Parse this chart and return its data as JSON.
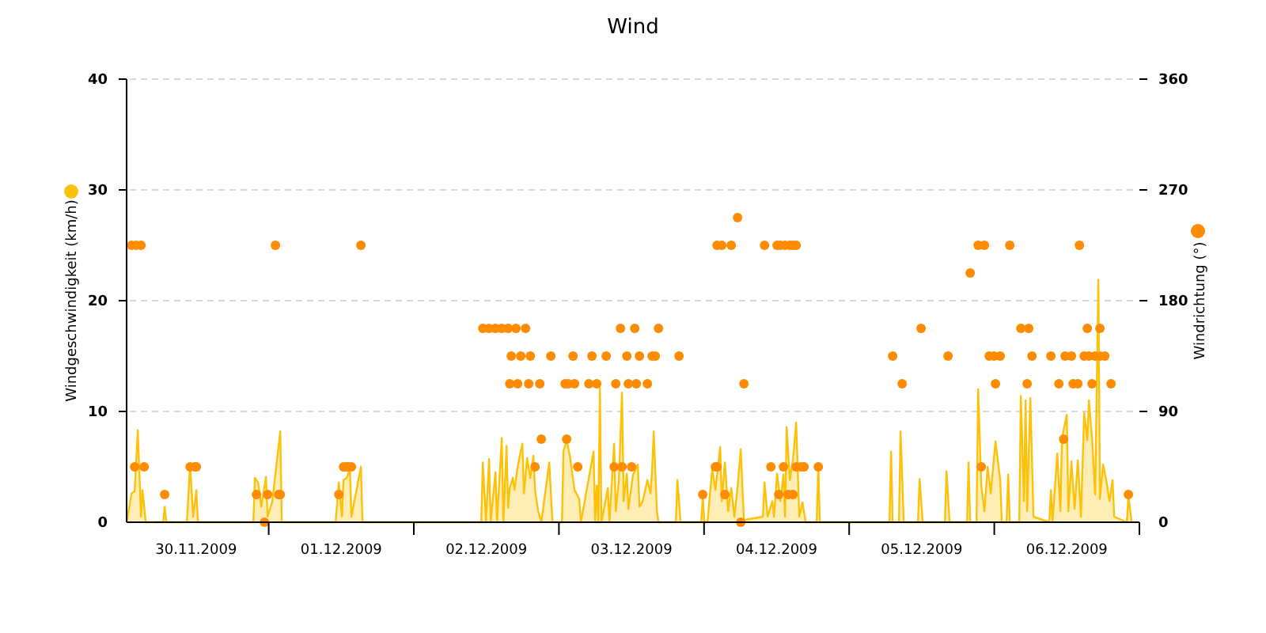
{
  "chart_data": {
    "type": "area",
    "title": "Wind",
    "ylabel": "Windgeschwindigkeit (km/h)",
    "y2label": "Windrichtung (°)",
    "xlim": [
      "2009-11-30T00:30",
      "2009-12-07T00:00"
    ],
    "xticks": [
      {
        "value": "2009-11-30T12:00",
        "label": "30.11.2009"
      },
      {
        "value": "2009-12-01T00:00",
        "label": null
      },
      {
        "value": "2009-12-01T12:00",
        "label": "01.12.2009"
      },
      {
        "value": "2009-12-02T00:00",
        "label": null
      },
      {
        "value": "2009-12-02T12:00",
        "label": "02.12.2009"
      },
      {
        "value": "2009-12-03T00:00",
        "label": null
      },
      {
        "value": "2009-12-03T12:00",
        "label": "03.12.2009"
      },
      {
        "value": "2009-12-04T00:00",
        "label": null
      },
      {
        "value": "2009-12-04T12:00",
        "label": "04.12.2009"
      },
      {
        "value": "2009-12-05T00:00",
        "label": null
      },
      {
        "value": "2009-12-05T12:00",
        "label": "05.12.2009"
      },
      {
        "value": "2009-12-06T00:00",
        "label": null
      },
      {
        "value": "2009-12-06T12:00",
        "label": "06.12.2009"
      },
      {
        "value": "2009-12-07T00:00",
        "label": null
      }
    ],
    "ylim": [
      0,
      40
    ],
    "yticks": [
      0,
      10,
      20,
      30,
      40
    ],
    "y2lim": [
      0,
      360
    ],
    "y2ticks": [
      0,
      90,
      180,
      270,
      360
    ],
    "grid": "y",
    "series": [
      {
        "color": "#fcc20a",
        "x": [
          "2009-11-30T00:31",
          "2009-11-30T01:19",
          "2009-11-30T01:50",
          "2009-11-30T02:21",
          "2009-11-30T02:53",
          "2009-11-30T03:08",
          "2009-11-30T03:40",
          "2009-11-30T06:33",
          "2009-11-30T06:48",
          "2009-11-30T07:04",
          "2009-11-30T10:28",
          "2009-11-30T11:00",
          "2009-11-30T11:31",
          "2009-11-30T12:02",
          "2009-11-30T12:18",
          "2009-11-30T21:28",
          "2009-11-30T21:43",
          "2009-11-30T22:15",
          "2009-11-30T22:46",
          "2009-11-30T23:33",
          "2009-11-30T23:49",
          "2009-12-01T00:36",
          "2009-12-01T01:55",
          "2009-12-01T02:10",
          "2009-12-01T11:04",
          "2009-12-01T11:36",
          "2009-12-01T12:07",
          "2009-12-01T12:23",
          "2009-12-01T12:54",
          "2009-12-01T13:26",
          "2009-12-01T13:41",
          "2009-12-01T15:15",
          "2009-12-01T15:31",
          "2009-12-02T11:09",
          "2009-12-02T11:25",
          "2009-12-02T11:56",
          "2009-12-02T12:27",
          "2009-12-02T12:43",
          "2009-12-02T13:30",
          "2009-12-02T13:46",
          "2009-12-02T14:33",
          "2009-12-02T14:49",
          "2009-12-02T15:20",
          "2009-12-02T15:36",
          "2009-12-02T15:52",
          "2009-12-02T16:23",
          "2009-12-02T16:39",
          "2009-12-02T17:10",
          "2009-12-02T17:57",
          "2009-12-02T18:13",
          "2009-12-02T18:44",
          "2009-12-02T19:16",
          "2009-12-02T19:47",
          "2009-12-02T20:03",
          "2009-12-02T20:34",
          "2009-12-02T21:05",
          "2009-12-02T22:24",
          "2009-12-02T22:56",
          "2009-12-03T00:30",
          "2009-12-03T00:45",
          "2009-12-03T01:17",
          "2009-12-03T01:48",
          "2009-12-03T02:35",
          "2009-12-03T03:22",
          "2009-12-03T03:38",
          "2009-12-03T05:44",
          "2009-12-03T05:59",
          "2009-12-03T06:15",
          "2009-12-03T06:31",
          "2009-12-03T06:47",
          "2009-12-03T07:02",
          "2009-12-03T08:05",
          "2009-12-03T08:21",
          "2009-12-03T09:08",
          "2009-12-03T09:24",
          "2009-12-03T09:55",
          "2009-12-03T10:26",
          "2009-12-03T10:42",
          "2009-12-03T11:14",
          "2009-12-03T11:29",
          "2009-12-03T12:16",
          "2009-12-03T13:03",
          "2009-12-03T13:19",
          "2009-12-03T13:51",
          "2009-12-03T14:38",
          "2009-12-03T15:09",
          "2009-12-03T15:25",
          "2009-12-03T15:41",
          "2009-12-03T16:12",
          "2009-12-03T16:28",
          "2009-12-03T19:20",
          "2009-12-03T19:36",
          "2009-12-03T20:07",
          "2009-12-03T23:32",
          "2009-12-03T23:47",
          "2009-12-04T00:03",
          "2009-12-04T00:34",
          "2009-12-04T01:21",
          "2009-12-04T01:53",
          "2009-12-04T02:40",
          "2009-12-04T02:56",
          "2009-12-04T03:27",
          "2009-12-04T03:59",
          "2009-12-04T04:30",
          "2009-12-04T05:01",
          "2009-12-04T05:33",
          "2009-12-04T06:04",
          "2009-12-04T06:36",
          "2009-12-04T09:44",
          "2009-12-04T10:00",
          "2009-12-04T10:31",
          "2009-12-04T11:18",
          "2009-12-04T11:34",
          "2009-12-04T12:05",
          "2009-12-04T12:37",
          "2009-12-04T13:08",
          "2009-12-04T13:24",
          "2009-12-04T13:40",
          "2009-12-04T14:11",
          "2009-12-04T14:43",
          "2009-12-04T15:14",
          "2009-12-04T15:45",
          "2009-12-04T16:17",
          "2009-12-04T16:48",
          "2009-12-04T18:38",
          "2009-12-04T18:54",
          "2009-12-04T19:09",
          "2009-12-05T06:40",
          "2009-12-05T06:56",
          "2009-12-05T07:12",
          "2009-12-05T08:14",
          "2009-12-05T08:30",
          "2009-12-05T09:02",
          "2009-12-05T11:23",
          "2009-12-05T11:39",
          "2009-12-05T12:10",
          "2009-12-05T15:50",
          "2009-12-05T16:06",
          "2009-12-05T16:37",
          "2009-12-05T19:30",
          "2009-12-05T19:45",
          "2009-12-05T20:01",
          "2009-12-05T21:04",
          "2009-12-05T21:20",
          "2009-12-05T21:51",
          "2009-12-05T22:22",
          "2009-12-05T22:54",
          "2009-12-05T23:25",
          "2009-12-06T00:12",
          "2009-12-06T00:59",
          "2009-12-06T01:15",
          "2009-12-06T02:02",
          "2009-12-06T02:18",
          "2009-12-06T02:34",
          "2009-12-06T04:08",
          "2009-12-06T04:24",
          "2009-12-06T04:55",
          "2009-12-06T05:11",
          "2009-12-06T05:26",
          "2009-12-06T05:58",
          "2009-12-06T06:29",
          "2009-12-06T09:06",
          "2009-12-06T09:22",
          "2009-12-06T09:38",
          "2009-12-06T10:25",
          "2009-12-06T10:56",
          "2009-12-06T11:12",
          "2009-12-06T11:59",
          "2009-12-06T12:15",
          "2009-12-06T12:46",
          "2009-12-06T13:17",
          "2009-12-06T13:49",
          "2009-12-06T14:20",
          "2009-12-06T14:52",
          "2009-12-06T15:23",
          "2009-12-06T15:39",
          "2009-12-06T16:10",
          "2009-12-06T16:41",
          "2009-12-06T17:13",
          "2009-12-06T17:28",
          "2009-12-06T18:00",
          "2009-12-06T18:31",
          "2009-12-06T19:03",
          "2009-12-06T19:34",
          "2009-12-06T19:50",
          "2009-12-06T21:56",
          "2009-12-06T22:11",
          "2009-12-06T22:43"
        ],
        "values": [
          0,
          2.6,
          2.8,
          8.3,
          0.5,
          2.9,
          0,
          0,
          1.4,
          0,
          0,
          5.2,
          0.5,
          2.9,
          0,
          0,
          4,
          3.6,
          1.4,
          4.1,
          0.5,
          1.9,
          8.2,
          0,
          0,
          3.6,
          0.5,
          3.8,
          4,
          4.8,
          0.5,
          5,
          0,
          0,
          5.4,
          0,
          5.7,
          0,
          4.5,
          0,
          7.6,
          0,
          6.9,
          1.3,
          3.1,
          4,
          2.9,
          5,
          7.1,
          2.6,
          5.8,
          4,
          6,
          2.9,
          1,
          0,
          5.4,
          0,
          0,
          6.4,
          7.4,
          6,
          2.9,
          2.1,
          0,
          6.4,
          0,
          3.3,
          0,
          12.1,
          0,
          3.1,
          0,
          7.1,
          1,
          3.8,
          11.7,
          1.9,
          4.4,
          1.2,
          4.3,
          5.2,
          1.4,
          1.9,
          3.8,
          2.6,
          4.8,
          8.2,
          1,
          0,
          0,
          3.8,
          0,
          0,
          2.4,
          0,
          0,
          4.8,
          2.9,
          6.8,
          1.9,
          5.4,
          1,
          3.1,
          0.5,
          3.2,
          6.6,
          0.2,
          0.5,
          3.6,
          0.5,
          1.9,
          0.5,
          4.4,
          1.9,
          4.3,
          0.5,
          8.6,
          3.8,
          5.7,
          9,
          0.5,
          1.8,
          0,
          0,
          5.2,
          0,
          0,
          6.4,
          0,
          0,
          8.2,
          0,
          0,
          3.9,
          0,
          0,
          4.6,
          0,
          0,
          5.4,
          0,
          0,
          12,
          3.3,
          1,
          5,
          2.6,
          7.3,
          3.8,
          0,
          0,
          4.3,
          0,
          0,
          11.4,
          1.9,
          11,
          1,
          11.2,
          0.5,
          0,
          2.9,
          0,
          6.2,
          1,
          7.6,
          9.7,
          1,
          5.5,
          1.2,
          5.6,
          0.5,
          9.9,
          7.4,
          11,
          7.6,
          2.5,
          21.9,
          2.1,
          5.2,
          3.8,
          1.9,
          3.8,
          0.5,
          0,
          2.4,
          0
        ]
      },
      {
        "type": "scatter",
        "axis": "y2",
        "marker": "circle",
        "color": "#ff8c00",
        "x": [
          "2009-11-30T01:19",
          "2009-11-30T02:06",
          "2009-11-30T02:53",
          "2009-11-30T01:50",
          "2009-11-30T03:24",
          "2009-11-30T06:48",
          "2009-11-30T11:00",
          "2009-11-30T11:47",
          "2009-11-30T12:02",
          "2009-11-30T21:59",
          "2009-11-30T23:18",
          "2009-11-30T23:49",
          "2009-12-01T01:07",
          "2009-12-01T01:39",
          "2009-12-01T01:55",
          "2009-12-01T11:36",
          "2009-12-01T12:23",
          "2009-12-01T12:54",
          "2009-12-01T13:10",
          "2009-12-01T13:41",
          "2009-12-01T15:15",
          "2009-12-02T11:25",
          "2009-12-02T12:27",
          "2009-12-02T13:30",
          "2009-12-02T14:33",
          "2009-12-02T15:36",
          "2009-12-02T16:54",
          "2009-12-02T18:29",
          "2009-12-02T15:52",
          "2009-12-02T16:07",
          "2009-12-02T17:10",
          "2009-12-02T17:41",
          "2009-12-02T19:00",
          "2009-12-02T19:16",
          "2009-12-02T20:03",
          "2009-12-02T20:50",
          "2009-12-02T21:05",
          "2009-12-02T22:40",
          "2009-12-03T01:01",
          "2009-12-03T01:17",
          "2009-12-03T01:33",
          "2009-12-03T02:20",
          "2009-12-03T02:35",
          "2009-12-03T03:07",
          "2009-12-03T04:57",
          "2009-12-03T05:28",
          "2009-12-03T06:15",
          "2009-12-03T07:49",
          "2009-12-03T09:08",
          "2009-12-03T09:24",
          "2009-12-03T10:11",
          "2009-12-03T10:26",
          "2009-12-03T11:14",
          "2009-12-03T11:29",
          "2009-12-03T12:01",
          "2009-12-03T12:32",
          "2009-12-03T12:48",
          "2009-12-03T13:19",
          "2009-12-03T14:38",
          "2009-12-03T15:25",
          "2009-12-03T15:56",
          "2009-12-03T16:28",
          "2009-12-03T19:52",
          "2009-12-03T23:47",
          "2009-12-04T01:53",
          "2009-12-04T02:09",
          "2009-12-04T02:09",
          "2009-12-04T02:56",
          "2009-12-04T03:27",
          "2009-12-04T04:30",
          "2009-12-04T05:33",
          "2009-12-04T06:04",
          "2009-12-04T06:36",
          "2009-12-04T10:00",
          "2009-12-04T11:03",
          "2009-12-04T12:05",
          "2009-12-04T12:21",
          "2009-12-04T12:37",
          "2009-12-04T13:08",
          "2009-12-04T13:24",
          "2009-12-04T13:55",
          "2009-12-04T14:11",
          "2009-12-04T14:43",
          "2009-12-04T14:43",
          "2009-12-04T15:14",
          "2009-12-04T15:14",
          "2009-12-04T16:01",
          "2009-12-04T16:32",
          "2009-12-04T18:54",
          "2009-12-05T07:12",
          "2009-12-05T08:46",
          "2009-12-05T11:54",
          "2009-12-05T16:21",
          "2009-12-05T20:01",
          "2009-12-05T21:20",
          "2009-12-05T21:51",
          "2009-12-05T22:22",
          "2009-12-05T23:10",
          "2009-12-05T23:57",
          "2009-12-06T00:12",
          "2009-12-06T00:59",
          "2009-12-06T02:34",
          "2009-12-06T04:24",
          "2009-12-06T05:26",
          "2009-12-06T05:42",
          "2009-12-06T06:14",
          "2009-12-06T09:22",
          "2009-12-06T10:41",
          "2009-12-06T11:28",
          "2009-12-06T11:43",
          "2009-12-06T12:46",
          "2009-12-06T13:02",
          "2009-12-06T13:49",
          "2009-12-06T14:05",
          "2009-12-06T14:52",
          "2009-12-06T15:23",
          "2009-12-06T15:39",
          "2009-12-06T16:10",
          "2009-12-06T16:41",
          "2009-12-06T17:28",
          "2009-12-06T17:28",
          "2009-12-06T18:16",
          "2009-12-06T19:19",
          "2009-12-06T22:11"
        ],
        "values": [
          225,
          225,
          225,
          45,
          45,
          22.5,
          45,
          45,
          45,
          22.5,
          0,
          22.5,
          225,
          22.5,
          22.5,
          22.5,
          45,
          45,
          45,
          45,
          225,
          157.5,
          157.5,
          157.5,
          157.5,
          157.5,
          157.5,
          157.5,
          112.5,
          135,
          112.5,
          135,
          112.5,
          135,
          45,
          112.5,
          67.5,
          135,
          112.5,
          67.5,
          112.5,
          135,
          112.5,
          45,
          112.5,
          135,
          112.5,
          135,
          45,
          112.5,
          157.5,
          45,
          135,
          112.5,
          45,
          157.5,
          112.5,
          135,
          112.5,
          135,
          135,
          157.5,
          135,
          22.5,
          45,
          45,
          225,
          225,
          22.5,
          225,
          247.5,
          0,
          112.5,
          225,
          45,
          225,
          22.5,
          225,
          45,
          225,
          22.5,
          225,
          22.5,
          225,
          225,
          45,
          45,
          45,
          45,
          135,
          112.5,
          157.5,
          135,
          202.5,
          225,
          45,
          225,
          135,
          135,
          112.5,
          135,
          225,
          157.5,
          112.5,
          157.5,
          135,
          135,
          112.5,
          67.5,
          135,
          135,
          112.5,
          112.5,
          225,
          135,
          157.5,
          135,
          112.5,
          135,
          157.5,
          135,
          135,
          112.5,
          22.5
        ]
      }
    ]
  }
}
